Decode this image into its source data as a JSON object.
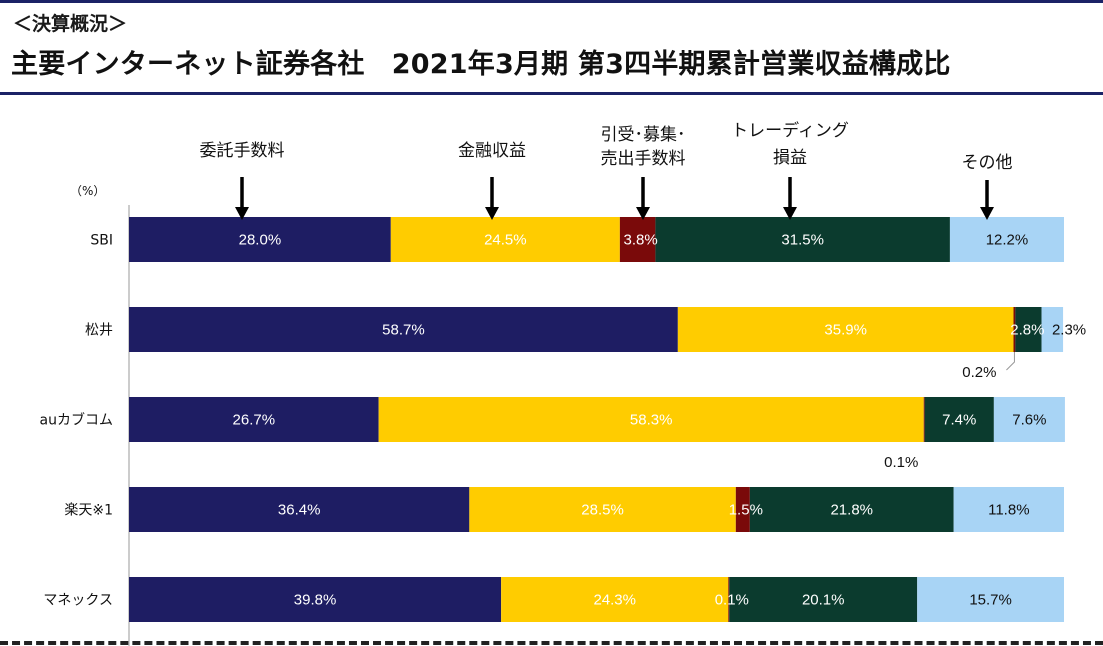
{
  "header": {
    "kicker": "＜決算概況＞",
    "title": "主要インターネット証券各社　2021年3月期 第3四半期累計営業収益構成比"
  },
  "chart_data": {
    "type": "bar",
    "orientation": "horizontal-stacked-100",
    "unit_label": "（%）",
    "categories": [
      "SBI",
      "松井",
      "auカブコム",
      "楽天※1",
      "マネックス"
    ],
    "series": [
      {
        "name": "委託手数料",
        "color": "#1e1d63",
        "text_color": "#ffffff",
        "values": [
          28.0,
          58.7,
          26.7,
          36.4,
          39.8
        ]
      },
      {
        "name": "金融収益",
        "color": "#ffcc00",
        "text_color": "#ffffff",
        "values": [
          24.5,
          35.9,
          58.3,
          28.5,
          24.3
        ]
      },
      {
        "name": "引受・募集・売出手数料",
        "color": "#7a0a0a",
        "text_color": "#ffffff",
        "values": [
          3.8,
          0.2,
          0.1,
          1.5,
          0.1
        ]
      },
      {
        "name": "トレーディング損益",
        "color": "#0b3b2e",
        "text_color": "#ffffff",
        "values": [
          31.5,
          2.8,
          7.4,
          21.8,
          20.1
        ]
      },
      {
        "name": "その他",
        "color": "#a8d4f5",
        "text_color": "#111111",
        "values": [
          12.2,
          2.3,
          7.6,
          11.8,
          15.7
        ]
      }
    ],
    "segment_labels": [
      [
        "28.0%",
        "24.5%",
        "3.8%",
        "31.5%",
        "12.2%"
      ],
      [
        "58.7%",
        "35.9%",
        "",
        "2.8%",
        "2.3%"
      ],
      [
        "26.7%",
        "58.3%",
        "",
        "7.4%",
        "7.6%"
      ],
      [
        "36.4%",
        "28.5%",
        "1.5%",
        "21.8%",
        "11.8%"
      ],
      [
        "39.8%",
        "24.3%",
        "0.1%",
        "20.1%",
        "15.7%"
      ]
    ],
    "callouts": [
      {
        "row": 1,
        "text": "0.2%"
      },
      {
        "row": 2,
        "text": "0.1%"
      }
    ],
    "annotations": [
      {
        "lines": [
          "委託手数料"
        ],
        "series": 0
      },
      {
        "lines": [
          "金融収益"
        ],
        "series": 1
      },
      {
        "lines": [
          "引受･募集･",
          "売出手数料"
        ],
        "series": 2
      },
      {
        "lines": [
          "トレーディング",
          "損益"
        ],
        "series": 3
      },
      {
        "lines": [
          "その他"
        ],
        "series": 4
      }
    ],
    "xlim": [
      0,
      100
    ],
    "legend": "none",
    "grid": false
  }
}
